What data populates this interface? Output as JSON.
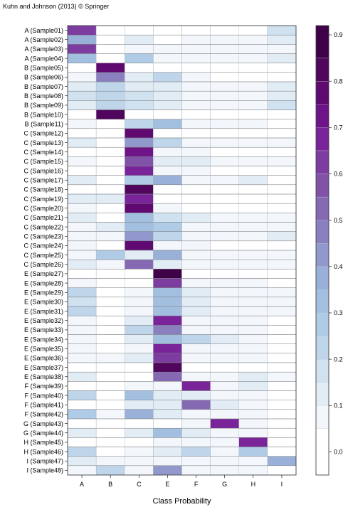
{
  "copyright": "Kuhn and Johnson (2013) © Springer",
  "chart_data": {
    "type": "heatmap",
    "xlabel": "Class Probability",
    "ylabel": "",
    "columns": [
      "A",
      "B",
      "C",
      "E",
      "F",
      "G",
      "H",
      "I"
    ],
    "rows": [
      "A (Sample01)",
      "A (Sample02)",
      "A (Sample03)",
      "A (Sample04)",
      "B (Sample05)",
      "B (Sample06)",
      "B (Sample07)",
      "B (Sample08)",
      "B (Sample09)",
      "B (Sample10)",
      "B (Sample11)",
      "C (Sample12)",
      "C (Sample13)",
      "C (Sample14)",
      "C (Sample15)",
      "C (Sample16)",
      "C (Sample17)",
      "C (Sample18)",
      "C (Sample19)",
      "C (Sample20)",
      "C (Sample21)",
      "C (Sample22)",
      "C (Sample23)",
      "C (Sample24)",
      "C (Sample25)",
      "C (Sample26)",
      "E (Sample27)",
      "E (Sample28)",
      "E (Sample29)",
      "E (Sample30)",
      "E (Sample31)",
      "E (Sample32)",
      "E (Sample33)",
      "E (Sample34)",
      "E (Sample35)",
      "E (Sample36)",
      "E (Sample37)",
      "E (Sample38)",
      "F (Sample39)",
      "F (Sample40)",
      "F (Sample41)",
      "F (Sample42)",
      "G (Sample43)",
      "G (Sample44)",
      "H (Sample45)",
      "H (Sample46)",
      "I (Sample47)",
      "I (Sample48)"
    ],
    "values": [
      [
        0.62,
        0.02,
        0.04,
        0.04,
        0.04,
        0.04,
        0.04,
        0.16
      ],
      [
        0.35,
        0.02,
        0.1,
        0.04,
        0.06,
        0.05,
        0.05,
        0.13
      ],
      [
        0.62,
        0.03,
        0.05,
        0.05,
        0.06,
        0.05,
        0.05,
        0.09
      ],
      [
        0.3,
        0.02,
        0.28,
        0.08,
        0.06,
        0.06,
        0.06,
        0.14
      ],
      [
        0.04,
        0.78,
        0.02,
        0.03,
        0.03,
        0.03,
        0.03,
        0.04
      ],
      [
        0.06,
        0.45,
        0.12,
        0.2,
        0.05,
        0.04,
        0.04,
        0.04
      ],
      [
        0.12,
        0.22,
        0.14,
        0.12,
        0.07,
        0.05,
        0.07,
        0.12
      ],
      [
        0.18,
        0.22,
        0.18,
        0.14,
        0.07,
        0.05,
        0.06,
        0.1
      ],
      [
        0.14,
        0.24,
        0.16,
        0.13,
        0.07,
        0.05,
        0.06,
        0.15
      ],
      [
        0.02,
        0.8,
        0.03,
        0.03,
        0.03,
        0.03,
        0.03,
        0.03
      ],
      [
        0.08,
        0.04,
        0.24,
        0.3,
        0.06,
        0.05,
        0.05,
        0.04
      ],
      [
        0.04,
        0.02,
        0.78,
        0.04,
        0.04,
        0.03,
        0.03,
        0.04
      ],
      [
        0.1,
        0.04,
        0.4,
        0.2,
        0.08,
        0.05,
        0.05,
        0.08
      ],
      [
        0.04,
        0.02,
        0.73,
        0.06,
        0.05,
        0.04,
        0.04,
        0.04
      ],
      [
        0.08,
        0.02,
        0.55,
        0.1,
        0.1,
        0.05,
        0.05,
        0.05
      ],
      [
        0.04,
        0.02,
        0.68,
        0.06,
        0.08,
        0.04,
        0.04,
        0.04
      ],
      [
        0.12,
        0.04,
        0.25,
        0.35,
        0.06,
        0.05,
        0.1,
        0.04
      ],
      [
        0.03,
        0.02,
        0.82,
        0.04,
        0.04,
        0.03,
        0.03,
        0.03
      ],
      [
        0.14,
        0.14,
        0.65,
        0.04,
        0.04,
        0.03,
        0.03,
        0.03
      ],
      [
        0.05,
        0.02,
        0.75,
        0.06,
        0.04,
        0.04,
        0.04,
        0.04
      ],
      [
        0.1,
        0.04,
        0.3,
        0.18,
        0.14,
        0.07,
        0.07,
        0.08
      ],
      [
        0.06,
        0.1,
        0.32,
        0.25,
        0.08,
        0.06,
        0.06,
        0.08
      ],
      [
        0.06,
        0.05,
        0.42,
        0.2,
        0.09,
        0.06,
        0.06,
        0.1
      ],
      [
        0.05,
        0.02,
        0.75,
        0.06,
        0.05,
        0.04,
        0.04,
        0.04
      ],
      [
        0.08,
        0.25,
        0.12,
        0.36,
        0.06,
        0.05,
        0.05,
        0.05
      ],
      [
        0.14,
        0.05,
        0.5,
        0.14,
        0.07,
        0.05,
        0.05,
        0.05
      ],
      [
        0.04,
        0.02,
        0.04,
        0.9,
        0.03,
        0.03,
        0.03,
        0.03
      ],
      [
        0.06,
        0.02,
        0.04,
        0.6,
        0.07,
        0.05,
        0.06,
        0.04
      ],
      [
        0.2,
        0.04,
        0.06,
        0.3,
        0.12,
        0.06,
        0.08,
        0.06
      ],
      [
        0.18,
        0.04,
        0.06,
        0.3,
        0.12,
        0.06,
        0.08,
        0.06
      ],
      [
        0.2,
        0.04,
        0.06,
        0.3,
        0.12,
        0.06,
        0.08,
        0.06
      ],
      [
        0.06,
        0.02,
        0.1,
        0.65,
        0.06,
        0.05,
        0.05,
        0.04
      ],
      [
        0.06,
        0.04,
        0.2,
        0.48,
        0.08,
        0.05,
        0.05,
        0.04
      ],
      [
        0.08,
        0.04,
        0.14,
        0.3,
        0.2,
        0.14,
        0.06,
        0.04
      ],
      [
        0.05,
        0.03,
        0.08,
        0.68,
        0.08,
        0.05,
        0.05,
        0.04
      ],
      [
        0.06,
        0.08,
        0.1,
        0.62,
        0.06,
        0.05,
        0.05,
        0.04
      ],
      [
        0.04,
        0.02,
        0.04,
        0.82,
        0.04,
        0.03,
        0.03,
        0.03
      ],
      [
        0.1,
        0.04,
        0.04,
        0.52,
        0.08,
        0.05,
        0.1,
        0.05
      ],
      [
        0.04,
        0.02,
        0.06,
        0.05,
        0.65,
        0.05,
        0.12,
        0.04
      ],
      [
        0.22,
        0.04,
        0.3,
        0.12,
        0.12,
        0.05,
        0.06,
        0.04
      ],
      [
        0.04,
        0.02,
        0.14,
        0.1,
        0.5,
        0.1,
        0.06,
        0.04
      ],
      [
        0.26,
        0.06,
        0.36,
        0.12,
        0.08,
        0.05,
        0.05,
        0.04
      ],
      [
        0.04,
        0.02,
        0.04,
        0.04,
        0.08,
        0.65,
        0.06,
        0.04
      ],
      [
        0.14,
        0.04,
        0.14,
        0.34,
        0.1,
        0.06,
        0.06,
        0.04
      ],
      [
        0.04,
        0.02,
        0.04,
        0.06,
        0.06,
        0.05,
        0.66,
        0.04
      ],
      [
        0.24,
        0.04,
        0.06,
        0.1,
        0.2,
        0.06,
        0.26,
        0.04
      ],
      [
        0.12,
        0.06,
        0.06,
        0.06,
        0.06,
        0.05,
        0.08,
        0.35
      ],
      [
        0.06,
        0.24,
        0.06,
        0.42,
        0.06,
        0.05,
        0.05,
        0.04
      ]
    ],
    "colorbar": {
      "min": -0.05,
      "max": 0.92,
      "ticks": [
        0.0,
        0.1,
        0.2,
        0.3,
        0.4,
        0.5,
        0.6,
        0.7,
        0.8,
        0.9
      ],
      "bins": [
        -0.05,
        0.05,
        0.1,
        0.15,
        0.2,
        0.25,
        0.3,
        0.35,
        0.4,
        0.45,
        0.5,
        0.55,
        0.6,
        0.65,
        0.7,
        0.75,
        0.8,
        0.85,
        0.92
      ],
      "palette": [
        "#ffffff",
        "#f3f7fb",
        "#e2ecf5",
        "#d0e1ef",
        "#bfd5ea",
        "#b0cbe6",
        "#a3bfe0",
        "#99b0d9",
        "#9198cc",
        "#8a80bf",
        "#8569b3",
        "#8153a8",
        "#7d3da0",
        "#792498",
        "#6e1488",
        "#600a71",
        "#4f065c",
        "#3f0148"
      ]
    }
  }
}
